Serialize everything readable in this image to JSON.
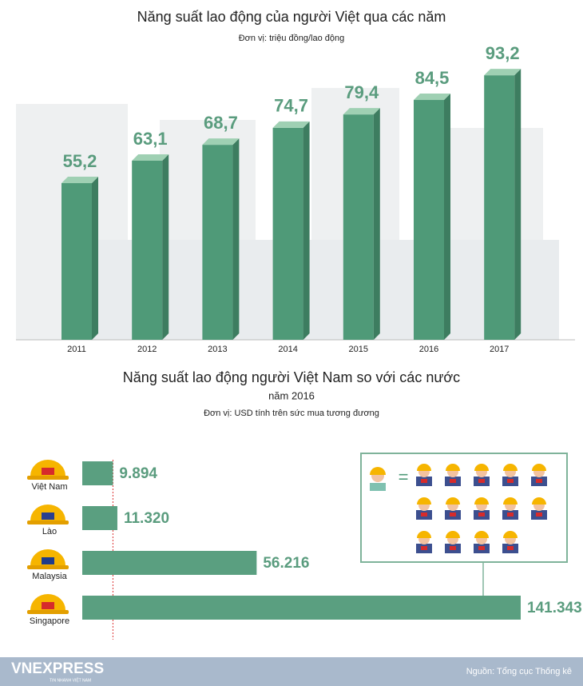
{
  "chart_data": [
    {
      "type": "bar3d",
      "title": "Năng suất lao động của người Việt qua các năm",
      "subtitle": "Đơn vị: triệu đồng/lao động",
      "categories": [
        "2011",
        "2012",
        "2013",
        "2014",
        "2015",
        "2016",
        "2017"
      ],
      "values": [
        55.2,
        63.1,
        68.7,
        74.7,
        79.4,
        84.5,
        93.2
      ],
      "value_labels": [
        "55,2",
        "63,1",
        "68,7",
        "74,7",
        "79,4",
        "84,5",
        "93,2"
      ],
      "color": "#4f9a78"
    },
    {
      "type": "hbar",
      "title": "Năng suất lao động người Việt Nam so với các nước",
      "subtitle": "năm  2016",
      "unit": "Đơn vị: USD tính trên sức mua tương đương",
      "categories": [
        "Việt Nam",
        "Lào",
        "Malaysia",
        "Singapore"
      ],
      "values": [
        9894,
        11320,
        56216,
        141343
      ],
      "value_labels": [
        "9.894",
        "11.320",
        "56.216",
        "141.343"
      ],
      "color": "#5a9f80"
    }
  ],
  "footer": {
    "logo": "VNEXPRESS",
    "tagline": "TIN NHANH VIỆT NAM",
    "source": "Nguồn: Tổng cục Thống kê"
  }
}
